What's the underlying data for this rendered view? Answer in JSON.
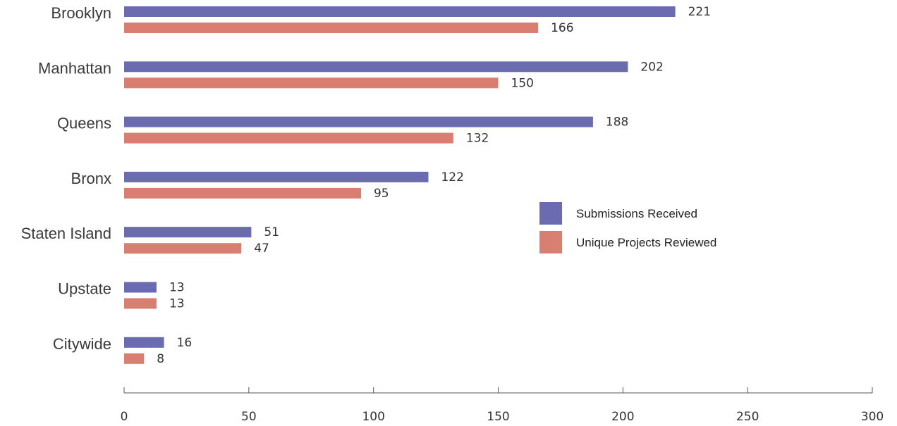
{
  "chart_data": {
    "type": "bar",
    "orientation": "horizontal",
    "categories": [
      "Brooklyn",
      "Manhattan",
      "Queens",
      "Bronx",
      "Staten Island",
      "Upstate",
      "Citywide"
    ],
    "series": [
      {
        "name": "Submissions Received",
        "color": "#6b6baf",
        "values": [
          221,
          202,
          188,
          122,
          51,
          13,
          16
        ]
      },
      {
        "name": "Unique Projects Reviewed",
        "color": "#d97f72",
        "values": [
          166,
          150,
          132,
          95,
          47,
          13,
          8
        ]
      }
    ],
    "xlim": [
      0,
      300
    ],
    "xticks": [
      0,
      50,
      100,
      150,
      200,
      250,
      300
    ],
    "grid": false,
    "legend_position": "right"
  }
}
